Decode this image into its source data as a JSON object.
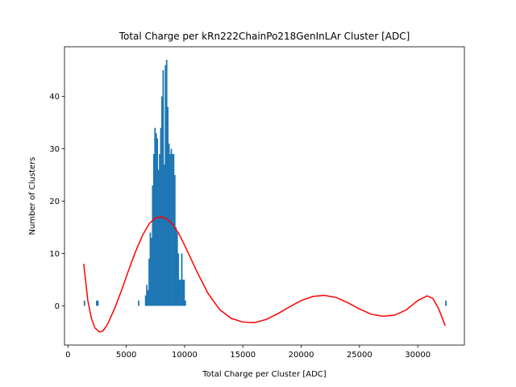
{
  "chart_data": {
    "type": "bar",
    "title": "Total Charge per kRn222ChainPo218GenInLAr Cluster [ADC]",
    "xlabel": "Total Charge per Cluster [ADC]",
    "ylabel": "Number of Clusters",
    "xlim": [
      -300,
      34000
    ],
    "ylim": [
      -7.5,
      49.5
    ],
    "xticks": [
      0,
      5000,
      10000,
      15000,
      20000,
      25000,
      30000
    ],
    "yticks": [
      0,
      10,
      20,
      30,
      40
    ],
    "bin_width": 125,
    "histogram": {
      "bin_starts": [
        1350,
        2400,
        2500,
        6000,
        6600,
        6700,
        6800,
        6900,
        7000,
        7100,
        7200,
        7300,
        7400,
        7500,
        7600,
        7700,
        7800,
        7900,
        8000,
        8100,
        8200,
        8300,
        8400,
        8500,
        8600,
        8700,
        8800,
        8900,
        9000,
        9100,
        9200,
        9300,
        9400,
        9500,
        9600,
        9700,
        9800,
        9900,
        10000,
        32350
      ],
      "counts": [
        1,
        1,
        1,
        1,
        2,
        4,
        3,
        9,
        14,
        13,
        23,
        29,
        34,
        33,
        32,
        26,
        29,
        34,
        40,
        45,
        27,
        46,
        47,
        38,
        31,
        29,
        30,
        29,
        29,
        25,
        15,
        14,
        10,
        5,
        5,
        10,
        5,
        5,
        1,
        1
      ]
    },
    "fit_curve": {
      "name": "",
      "color": "#ff0000",
      "x": [
        1350,
        1700,
        2000,
        2300,
        2700,
        3000,
        3400,
        4000,
        4600,
        5200,
        5800,
        6400,
        7000,
        7500,
        8000,
        8500,
        9000,
        9500,
        10000,
        10500,
        11000,
        12000,
        13000,
        14000,
        15000,
        16000,
        17000,
        18000,
        19000,
        20000,
        21000,
        22000,
        23000,
        24000,
        25000,
        26000,
        27000,
        28000,
        29000,
        30000,
        30800,
        31300,
        31800,
        32350
      ],
      "y": [
        8,
        1,
        -2.3,
        -4.2,
        -5,
        -4.8,
        -3.5,
        -0.5,
        3,
        6.8,
        10.4,
        13.5,
        15.8,
        16.8,
        17,
        16.6,
        15.5,
        13.8,
        11.6,
        9.2,
        6.8,
        2.4,
        -0.7,
        -2.4,
        -3.1,
        -3.2,
        -2.6,
        -1.5,
        -0.2,
        1,
        1.8,
        2,
        1.6,
        0.6,
        -0.6,
        -1.6,
        -2,
        -1.8,
        -0.8,
        1,
        1.9,
        1.4,
        -0.6,
        -3.8
      ]
    },
    "colors": {
      "bars": "#1f77b4",
      "fit": "#ff0000"
    },
    "grid": false,
    "legend": "none"
  }
}
